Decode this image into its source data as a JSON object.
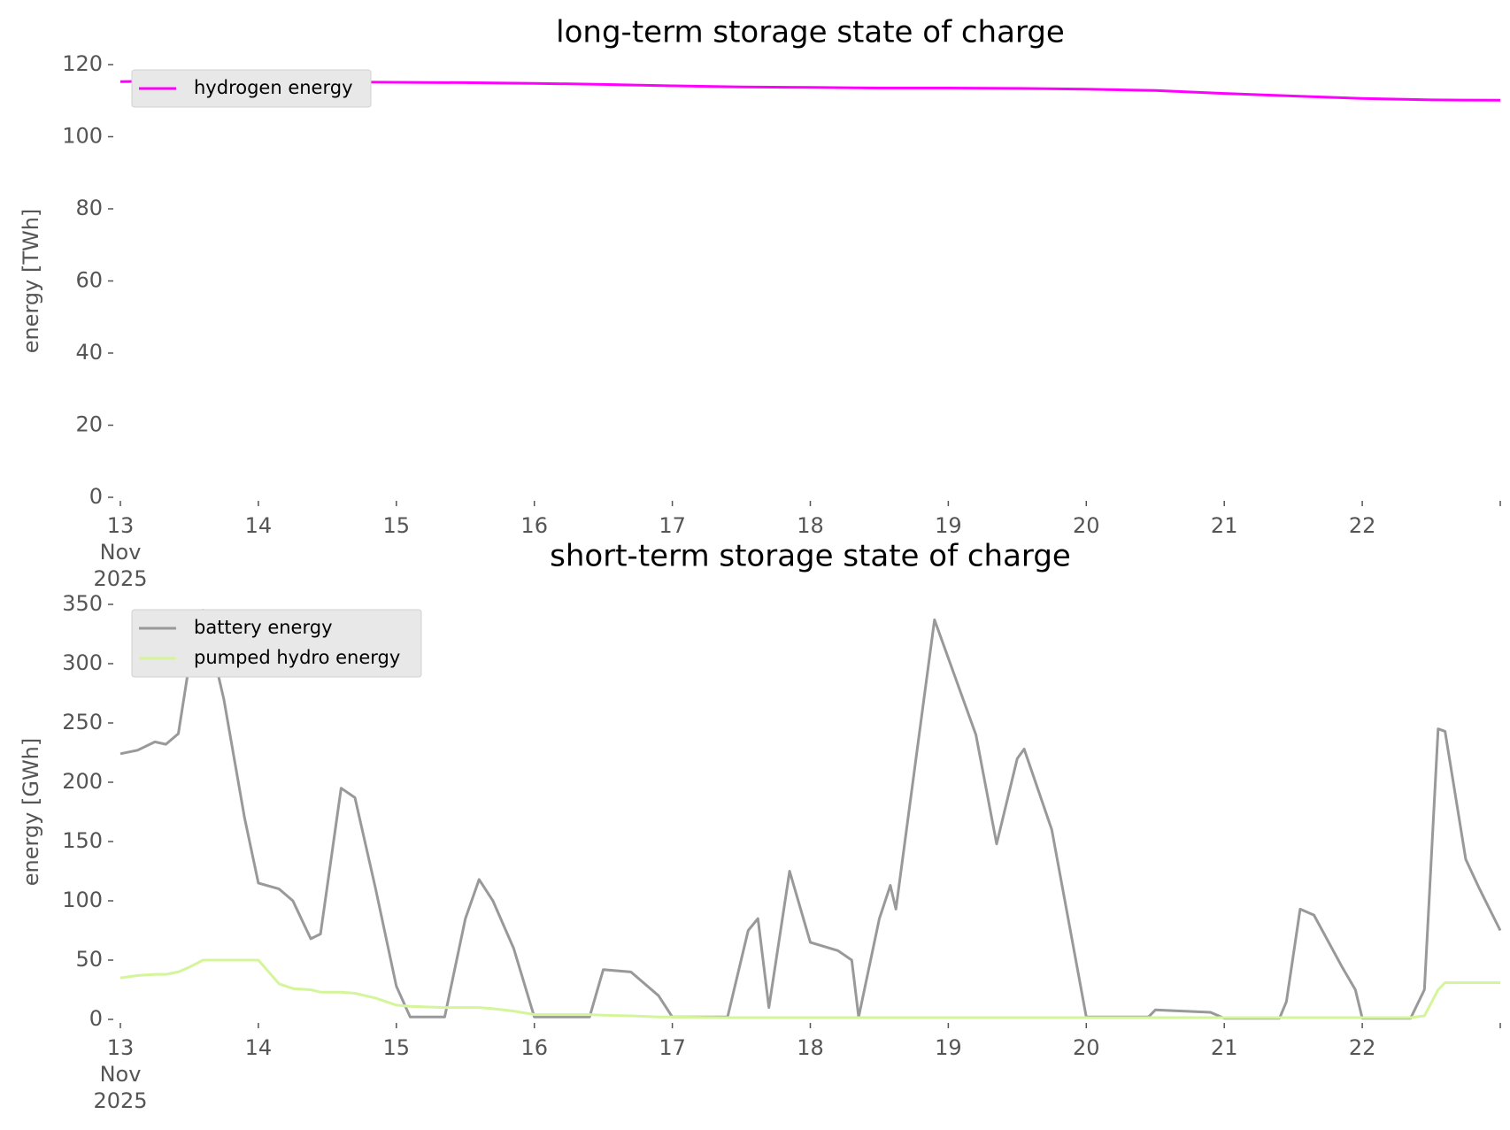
{
  "chart_data": [
    {
      "type": "line",
      "title": "long-term storage state of charge",
      "y_label": "energy [TWh]",
      "x": [
        13,
        13.5,
        14,
        14.5,
        15,
        15.5,
        16,
        16.5,
        17,
        17.5,
        18,
        18.5,
        19,
        19.5,
        20,
        20.5,
        21,
        21.5,
        22,
        22.5,
        23
      ],
      "series": [
        {
          "name": "hydrogen energy",
          "color": "#ff00ff",
          "values": [
            115.3,
            115.5,
            115.4,
            115.2,
            115.1,
            115.0,
            114.8,
            114.5,
            114.1,
            113.8,
            113.7,
            113.5,
            113.5,
            113.4,
            113.2,
            112.8,
            112.0,
            111.3,
            110.6,
            110.2,
            110.1
          ]
        }
      ],
      "xlim": [
        13,
        23
      ],
      "xticks": [
        {
          "value": 13,
          "label": "13\nNov\n2025"
        },
        14,
        15,
        16,
        17,
        18,
        19,
        20,
        21,
        22
      ],
      "ylim": [
        0,
        120
      ],
      "yticks": [
        0,
        20,
        40,
        60,
        80,
        100,
        120
      ],
      "grid": false,
      "legend": "upper left"
    },
    {
      "type": "line",
      "title": "short-term storage state of charge",
      "y_label": "energy [GWh]",
      "x": [
        13.0,
        13.125,
        13.25,
        13.33,
        13.42,
        13.5,
        13.6,
        13.75,
        13.9,
        14.0,
        14.15,
        14.25,
        14.38,
        14.45,
        14.6,
        14.7,
        14.85,
        15.0,
        15.1,
        15.35,
        15.5,
        15.6,
        15.7,
        15.85,
        16.0,
        16.4,
        16.5,
        16.7,
        16.9,
        17.0,
        17.4,
        17.55,
        17.62,
        17.7,
        17.85,
        18.0,
        18.2,
        18.3,
        18.35,
        18.5,
        18.58,
        18.62,
        18.9,
        19.2,
        19.35,
        19.5,
        19.55,
        19.75,
        20.0,
        20.45,
        20.5,
        20.9,
        21.0,
        21.4,
        21.45,
        21.55,
        21.65,
        21.85,
        21.95,
        22.0,
        22.35,
        22.45,
        22.55,
        22.6,
        22.75,
        22.85,
        23.0
      ],
      "series": [
        {
          "name": "battery energy",
          "color": "#999999",
          "values": [
            224,
            227,
            234,
            232,
            241,
            300,
            345,
            270,
            170,
            115,
            110,
            100,
            68,
            72,
            195,
            187,
            110,
            28,
            2,
            2,
            85,
            118,
            100,
            60,
            2,
            2,
            42,
            40,
            20,
            2,
            2,
            75,
            85,
            10,
            125,
            65,
            58,
            50,
            2,
            85,
            113,
            93,
            337,
            240,
            148,
            220,
            228,
            160,
            2,
            2,
            8,
            6,
            1,
            1,
            15,
            93,
            88,
            45,
            25,
            1,
            1,
            25,
            245,
            243,
            135,
            110,
            75
          ]
        },
        {
          "name": "pumped hydro energy",
          "color": "#d4f59a",
          "values": [
            35,
            37,
            38,
            38,
            40,
            44,
            50,
            50,
            50,
            50,
            30,
            26,
            25,
            23,
            23,
            22,
            18,
            12,
            11,
            10,
            10,
            10,
            9,
            7,
            4,
            4,
            3.5,
            3,
            2,
            2,
            1.5,
            1.5,
            1.5,
            1.5,
            1.5,
            1.5,
            1.5,
            1.5,
            1.5,
            1.5,
            1.5,
            1.5,
            1.5,
            1.5,
            1.5,
            1.5,
            1.5,
            1.5,
            1.5,
            1.5,
            1.5,
            1.5,
            1.5,
            1.5,
            1.5,
            1.5,
            1.5,
            1.5,
            1.5,
            1.5,
            1.5,
            3,
            25,
            31,
            31,
            31,
            31
          ]
        }
      ],
      "xlim": [
        13,
        23
      ],
      "xticks": [
        {
          "value": 13,
          "label": "13\nNov\n2025"
        },
        14,
        15,
        16,
        17,
        18,
        19,
        20,
        21,
        22
      ],
      "ylim": [
        0,
        350
      ],
      "yticks": [
        0,
        50,
        100,
        150,
        200,
        250,
        300,
        350
      ],
      "grid": false,
      "legend": "upper left"
    }
  ]
}
